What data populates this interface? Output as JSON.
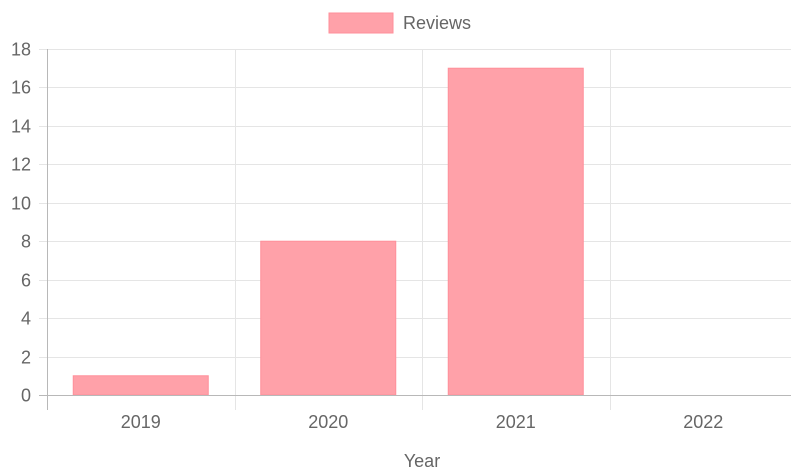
{
  "chart_data": {
    "type": "bar",
    "categories": [
      "2019",
      "2020",
      "2021",
      "2022"
    ],
    "series": [
      {
        "name": "Reviews",
        "values": [
          1,
          8,
          17,
          0
        ]
      }
    ],
    "xlabel": "Year",
    "ylabel": "",
    "ylim": [
      0,
      18
    ],
    "y_ticks": [
      "0",
      "2",
      "4",
      "6",
      "8",
      "10",
      "12",
      "14",
      "16",
      "18"
    ],
    "grid": true,
    "legend_position": "top",
    "colors": {
      "bar_fill": "#ffa1a9",
      "bar_border": "#ff8f9a",
      "grid": "#e5e5e5",
      "axis": "#b8b8b8",
      "text": "#666666"
    }
  }
}
